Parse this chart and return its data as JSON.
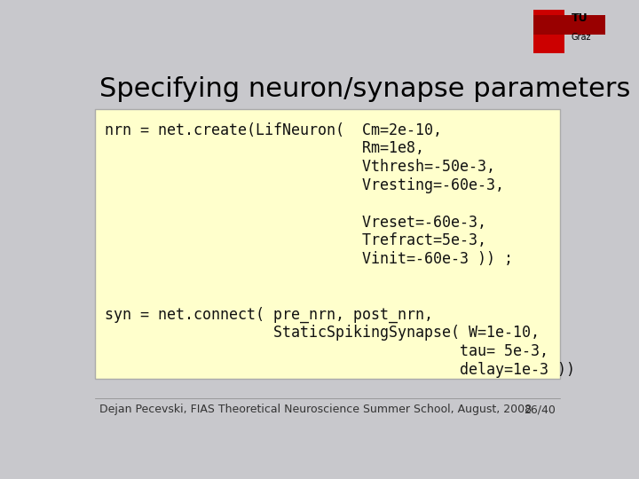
{
  "title": "Specifying neuron/synapse parameters",
  "title_fontsize": 22,
  "title_color": "#000000",
  "title_font": "sans-serif",
  "bg_color": "#c8c8cc",
  "code_box_color": "#ffffcc",
  "code_box_border": "#aaaaaa",
  "footer_text": "Dejan Pecevski, FIAS Theoretical Neuroscience Summer School, August, 2008",
  "footer_page": "26/40",
  "footer_fontsize": 9,
  "code_lines": [
    "nrn = net.create(LifNeuron(  Cm=2e-10,",
    "                             Rm=1e8,",
    "                             Vthresh=-50e-3,",
    "                             Vresting=-60e-3,",
    "",
    "                             Vreset=-60e-3,",
    "                             Trefract=5e-3,",
    "                             Vinit=-60e-3 )) ;",
    "",
    "",
    "syn = net.connect( pre_nrn, post_nrn,",
    "                   StaticSpikingSynapse( W=1e-10,",
    "                                        tau= 5e-3,",
    "                                        delay=1e-3 ))"
  ],
  "code_fontsize": 12,
  "code_font": "monospace",
  "code_color": "#111111",
  "tu_cross_color": "#cc0000",
  "tu_dark_color": "#990000",
  "footer_color": "#333333",
  "separator_color": "#888888"
}
